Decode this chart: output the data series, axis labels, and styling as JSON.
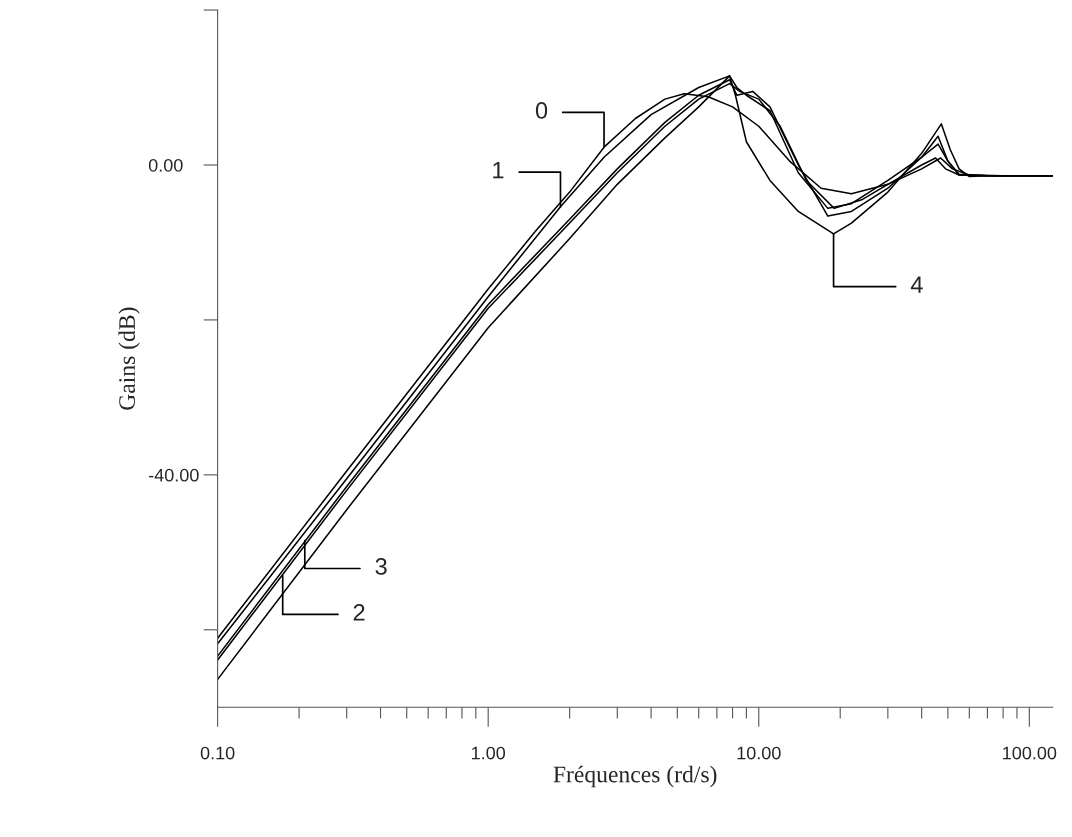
{
  "chart_data": {
    "type": "line",
    "xlabel": "Fréquences (rd/s)",
    "ylabel": "Gains (dB)",
    "log": "x",
    "grid": false,
    "legend": false,
    "marker": "none",
    "line_style": "solid",
    "xlim": [
      0.1,
      122
    ],
    "xticks": [
      {
        "value": 0.1,
        "label": "0.10"
      },
      {
        "value": 1,
        "label": "1.00"
      },
      {
        "value": 10,
        "label": "10.00"
      },
      {
        "value": 100,
        "label": "100.00"
      }
    ],
    "ylim": [
      -70,
      20
    ],
    "yticks": [
      {
        "value": 20,
        "label": null
      },
      {
        "value": 0,
        "label": "0.00"
      },
      {
        "value": -20,
        "label": null
      },
      {
        "value": -40,
        "label": "-40.00"
      },
      {
        "value": -60,
        "label": null
      }
    ],
    "series": [
      {
        "color": "#000000",
        "x": [
          0.1,
          0.3,
          1,
          1.5,
          2.0,
          2.68,
          3.5,
          4.5,
          5.3,
          6.5,
          8,
          10,
          13,
          17,
          22,
          30,
          40,
          47,
          52,
          60,
          80,
          122
        ],
        "values": [
          -61.1,
          -39.5,
          -16,
          -8.5,
          -3.5,
          2.3,
          6.0,
          8.5,
          9.2,
          8.8,
          7.5,
          5.0,
          0.5,
          -3.0,
          -3.7,
          -2.5,
          -0.5,
          0.9,
          -0.5,
          -1.3,
          -1.4,
          -1.4
        ]
      },
      {
        "color": "#000000",
        "x": [
          0.1,
          0.3,
          1,
          1.85,
          2.68,
          4,
          6,
          7.8,
          8.3,
          9,
          11,
          14,
          18,
          22,
          30,
          40,
          46,
          50,
          55,
          70,
          122
        ],
        "values": [
          -61.8,
          -40.5,
          -17,
          -5.4,
          1.0,
          6.5,
          10.0,
          11.5,
          10,
          9.0,
          7.0,
          -1,
          -5.6,
          -5.0,
          -2.0,
          1.0,
          2.7,
          0.5,
          -1.2,
          -1.4,
          -1.4
        ]
      },
      {
        "color": "#000000",
        "x": [
          0.1,
          0.3,
          1,
          2,
          3,
          4.5,
          6,
          7.8,
          8.5,
          10,
          12,
          15,
          19,
          24,
          30,
          40,
          45,
          49,
          55,
          70,
          122
        ],
        "values": [
          -63.9,
          -42,
          -18.5,
          -7.5,
          -1,
          5,
          8.5,
          10.5,
          9.5,
          8.5,
          5.0,
          -2,
          -5.6,
          -4.5,
          -2.5,
          0,
          0.9,
          -0.5,
          -1.3,
          -1.4,
          -1.4
        ]
      },
      {
        "color": "#000000",
        "x": [
          0.1,
          0.3,
          1,
          2,
          3,
          4.5,
          6,
          7.8,
          8.3,
          9.5,
          11,
          14,
          18,
          22,
          30,
          40,
          46,
          50,
          55,
          70,
          122
        ],
        "values": [
          -63.4,
          -41.5,
          -18,
          -7,
          -0.5,
          5.5,
          9.0,
          11.0,
          9.0,
          9.5,
          7.5,
          0,
          -6.6,
          -6.0,
          -3.0,
          1.0,
          3.7,
          0.5,
          -1.3,
          -1.4,
          -1.4
        ]
      },
      {
        "color": "#000000",
        "x": [
          0.1,
          0.3,
          1,
          2,
          3,
          4.5,
          6,
          7.8,
          8.2,
          9,
          11,
          14,
          18.9,
          22,
          30,
          40,
          47.3,
          51,
          55,
          60,
          70,
          122
        ],
        "values": [
          -66.4,
          -44.5,
          -21,
          -9.5,
          -2.5,
          3.5,
          7.5,
          11.5,
          9.0,
          3,
          -2.0,
          -6.0,
          -8.9,
          -7.5,
          -3.5,
          1.5,
          5.3,
          2.0,
          -0.5,
          -1.5,
          -1.4,
          -1.4
        ]
      }
    ],
    "annotations": [
      {
        "text": "0",
        "x": 2.68,
        "y": 2.3
      },
      {
        "text": "1",
        "x": 1.85,
        "y": -5.4
      },
      {
        "text": "2",
        "x": 0.174,
        "y": -53
      },
      {
        "text": "3",
        "x": 0.21,
        "y": -48.5
      },
      {
        "text": "4",
        "x": 18.9,
        "y": -8.9
      }
    ]
  }
}
